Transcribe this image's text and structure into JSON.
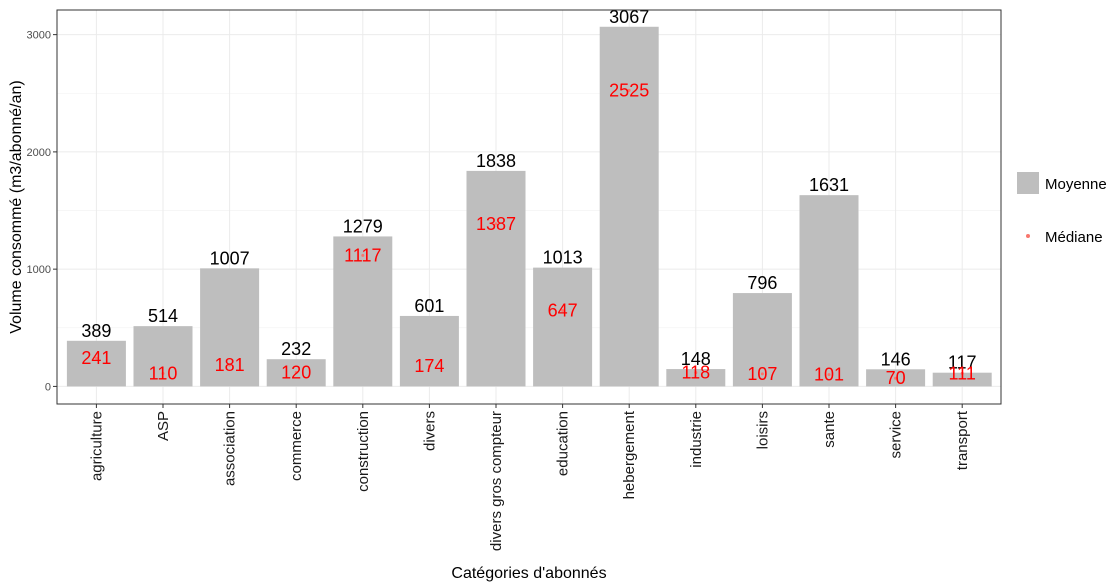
{
  "chart_data": {
    "type": "bar",
    "title": "",
    "xlabel": "Catégories d'abonnés",
    "ylabel": "Volume consommé (m3/abonné/an)",
    "ylim": [
      -150,
      3210
    ],
    "yticks": [
      0,
      1000,
      2000,
      3000
    ],
    "grid": true,
    "legend_position": "right",
    "categories": [
      "agriculture",
      "ASP",
      "association",
      "commerce",
      "construction",
      "divers",
      "divers gros compteur",
      "education",
      "hebergement",
      "industrie",
      "loisirs",
      "sante",
      "service",
      "transport"
    ],
    "series": [
      {
        "name": "Moyenne",
        "kind": "bar",
        "color": "#bebebe",
        "values": [
          389,
          514,
          1007,
          232,
          1279,
          601,
          1838,
          1013,
          3067,
          148,
          796,
          1631,
          146,
          117
        ]
      },
      {
        "name": "Médiane",
        "kind": "point",
        "color": "#f8766d",
        "label_color": "#ff0000",
        "values": [
          241,
          110,
          181,
          120,
          1117,
          174,
          1387,
          647,
          2525,
          118,
          107,
          101,
          70,
          111
        ]
      }
    ]
  }
}
